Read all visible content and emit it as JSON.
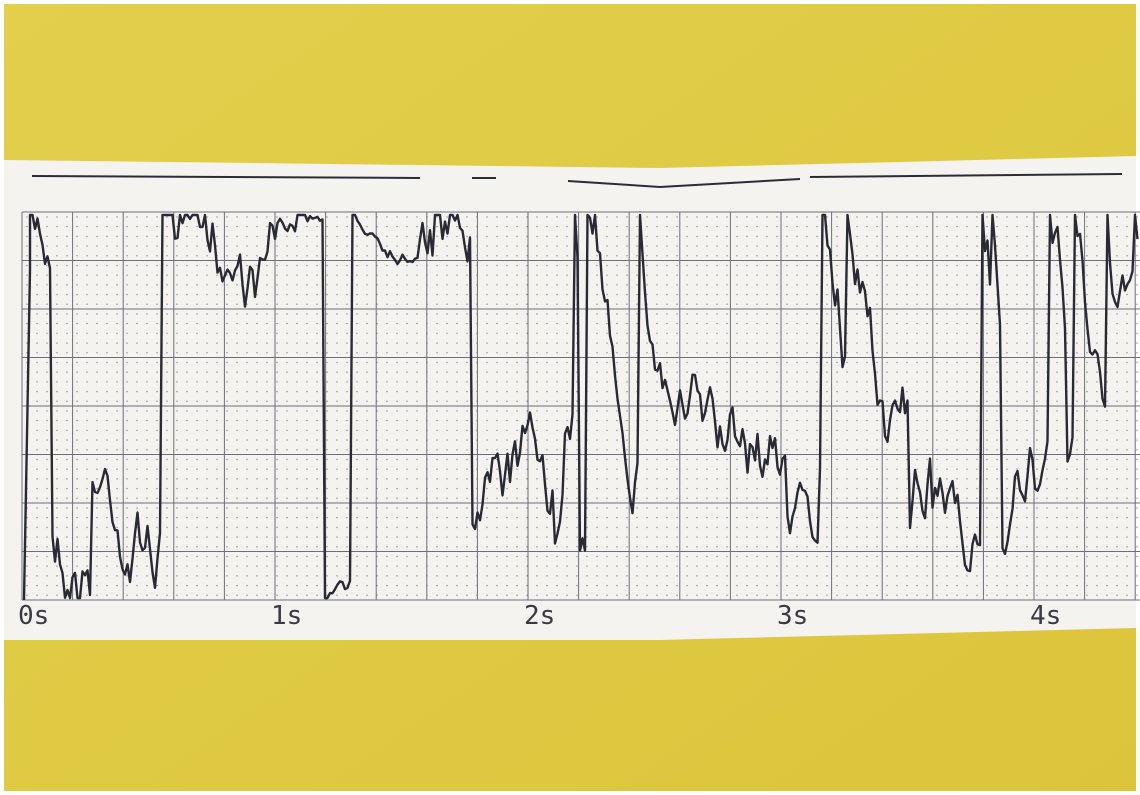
{
  "axis": {
    "labels": [
      "0s",
      "1s",
      "2s",
      "3s",
      "4s"
    ]
  }
}
